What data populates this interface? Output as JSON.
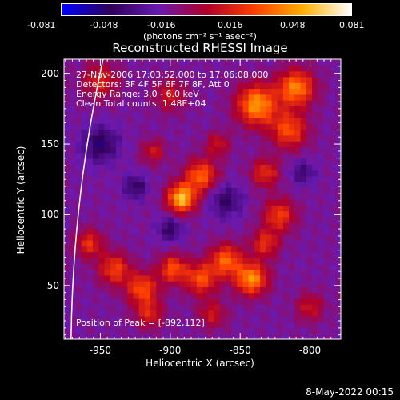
{
  "colorbar": {
    "tick_labels": [
      "-0.081",
      "-0.048",
      "-0.016",
      "0.016",
      "0.048",
      "0.081"
    ],
    "unit_label": "(photons cm⁻² s⁻¹ asec⁻²)",
    "colormap": [
      "#0000ff",
      "#30005a",
      "#6a1ab0",
      "#b0002a",
      "#ff4000",
      "#ffb000",
      "#ffffff"
    ]
  },
  "chart_data": {
    "type": "heatmap",
    "title": "Reconstructed RHESSI Image",
    "xlabel": "Heliocentric X (arcsec)",
    "ylabel": "Heliocentric Y (arcsec)",
    "xlim": [
      -976,
      -778
    ],
    "ylim": [
      12,
      210
    ],
    "xticks": [
      -950,
      -900,
      -850,
      -800
    ],
    "yticks": [
      50,
      100,
      150,
      200
    ],
    "xtick_labels": [
      "-950",
      "-900",
      "-850",
      "-800"
    ],
    "ytick_labels": [
      "50",
      "100",
      "150",
      "200"
    ],
    "value_range": [
      -0.081,
      0.081
    ],
    "grid_size": [
      48,
      48
    ],
    "peak_location": [
      -892,
      112
    ],
    "sources": [
      {
        "x": -892,
        "y": 112,
        "sigma": 7,
        "amplitude": 0.081
      },
      {
        "x": -878,
        "y": 128,
        "sigma": 8,
        "amplitude": 0.055
      },
      {
        "x": -838,
        "y": 178,
        "sigma": 10,
        "amplitude": 0.07
      },
      {
        "x": -810,
        "y": 190,
        "sigma": 9,
        "amplitude": 0.065
      },
      {
        "x": -815,
        "y": 160,
        "sigma": 9,
        "amplitude": 0.05
      },
      {
        "x": -832,
        "y": 130,
        "sigma": 7,
        "amplitude": 0.04
      },
      {
        "x": -822,
        "y": 100,
        "sigma": 8,
        "amplitude": 0.045
      },
      {
        "x": -832,
        "y": 80,
        "sigma": 7,
        "amplitude": 0.04
      },
      {
        "x": -842,
        "y": 55,
        "sigma": 8,
        "amplitude": 0.068
      },
      {
        "x": -860,
        "y": 68,
        "sigma": 8,
        "amplitude": 0.055
      },
      {
        "x": -878,
        "y": 55,
        "sigma": 8,
        "amplitude": 0.05
      },
      {
        "x": -898,
        "y": 62,
        "sigma": 7,
        "amplitude": 0.05
      },
      {
        "x": -920,
        "y": 48,
        "sigma": 8,
        "amplitude": 0.05
      },
      {
        "x": -940,
        "y": 62,
        "sigma": 8,
        "amplitude": 0.045
      },
      {
        "x": -958,
        "y": 80,
        "sigma": 7,
        "amplitude": 0.04
      },
      {
        "x": -915,
        "y": 30,
        "sigma": 7,
        "amplitude": 0.035
      },
      {
        "x": -870,
        "y": 30,
        "sigma": 7,
        "amplitude": 0.03
      },
      {
        "x": -800,
        "y": 35,
        "sigma": 7,
        "amplitude": 0.03
      },
      {
        "x": -950,
        "y": 195,
        "sigma": 9,
        "amplitude": 0.035
      },
      {
        "x": -900,
        "y": 185,
        "sigma": 8,
        "amplitude": 0.03
      },
      {
        "x": -912,
        "y": 145,
        "sigma": 6,
        "amplitude": 0.03
      },
      {
        "x": -866,
        "y": 150,
        "sigma": 6,
        "amplitude": 0.03
      },
      {
        "x": -925,
        "y": 120,
        "sigma": 6,
        "amplitude": -0.03
      },
      {
        "x": -950,
        "y": 150,
        "sigma": 9,
        "amplitude": -0.035
      },
      {
        "x": -900,
        "y": 90,
        "sigma": 6,
        "amplitude": -0.03
      },
      {
        "x": -860,
        "y": 110,
        "sigma": 8,
        "amplitude": -0.03
      },
      {
        "x": -805,
        "y": 130,
        "sigma": 6,
        "amplitude": -0.025
      }
    ],
    "annotations": {
      "time": "27-Nov-2006 17:03:52.000 to 17:06:08.000",
      "detectors": "Detectors: 3F 4F 5F 6F 7F 8F, Att 0",
      "energy": "Energy Range: 3.0 - 6.0 keV",
      "method": "Clean      Total counts: 1.48E+04",
      "peak": "Position of Peak = [-892,112]"
    },
    "limb": true
  },
  "timestamp": "8-May-2022 00:15"
}
